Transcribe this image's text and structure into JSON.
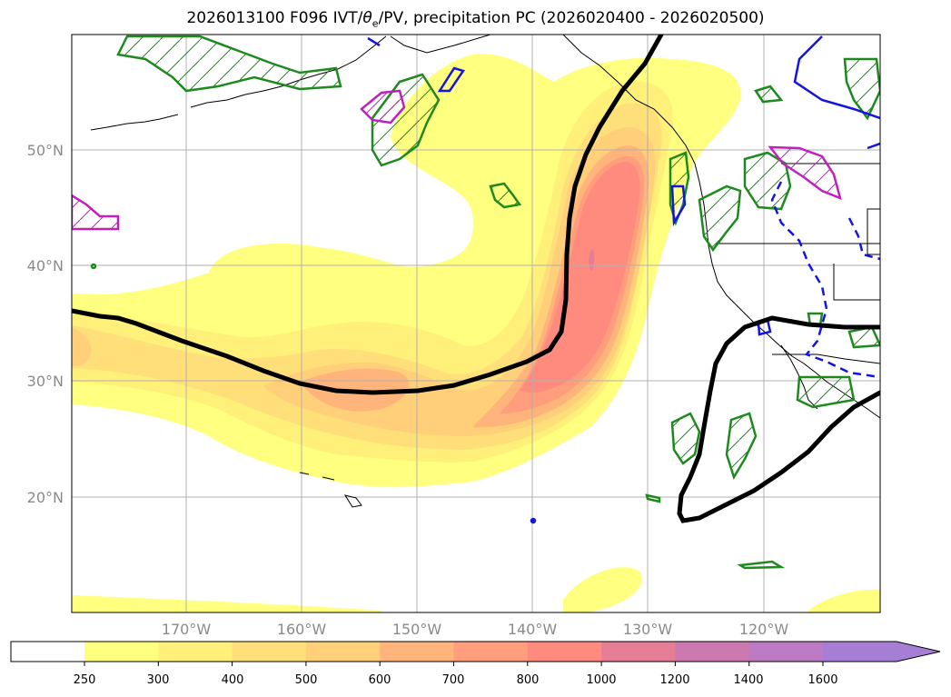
{
  "title": {
    "pre": "2026013100 F096 IVT/",
    "theta": "θ",
    "sub": "e",
    "post": "/PV, precipitation PC (2026020400 - 2026020500)"
  },
  "map": {
    "lon_labels": [
      "170°W",
      "160°W",
      "150°W",
      "140°W",
      "130°W",
      "120°W"
    ],
    "lat_labels": [
      "50°N",
      "40°N",
      "30°N",
      "20°N"
    ]
  },
  "colorbar": {
    "tick_labels": [
      "250",
      "300",
      "400",
      "500",
      "600",
      "700",
      "800",
      "1000",
      "1200",
      "1400",
      "1600"
    ],
    "colors": [
      "#ffffff",
      "#ffff80",
      "#fff07a",
      "#ffdf79",
      "#ffcf79",
      "#ffb47b",
      "#ff9d7c",
      "#ff8a7e",
      "#e57d96",
      "#cc79af",
      "#bb7ac3",
      "#a67ed4"
    ]
  }
}
